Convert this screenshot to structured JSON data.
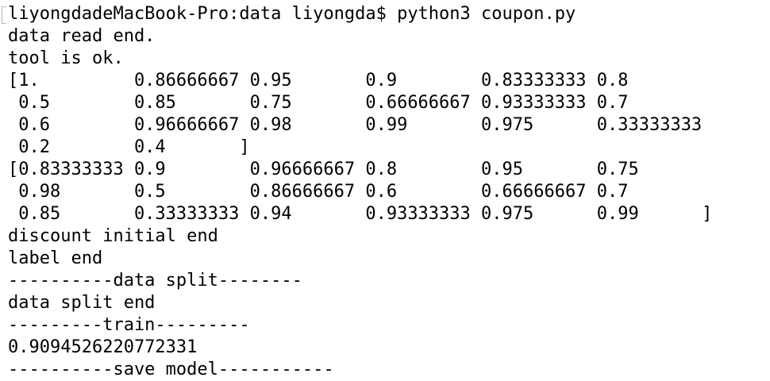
{
  "terminal": {
    "lines": [
      "liyongdadeMacBook-Pro:data liyongda$ python3 coupon.py",
      "data read end.",
      "tool is ok.",
      "[1.         0.86666667 0.95       0.9        0.83333333 0.8",
      " 0.5        0.85       0.75       0.66666667 0.93333333 0.7",
      " 0.6        0.96666667 0.98       0.99       0.975      0.33333333",
      " 0.2        0.4       ]",
      "[0.83333333 0.9        0.96666667 0.8        0.95       0.75",
      " 0.98       0.5        0.86666667 0.6        0.66666667 0.7",
      " 0.85       0.33333333 0.94       0.93333333 0.975      0.99      ]",
      "discount initial end",
      "label end",
      "----------data split--------",
      "data split end",
      "---------train---------",
      "0.9094526220772331",
      "----------save model-----------"
    ]
  }
}
